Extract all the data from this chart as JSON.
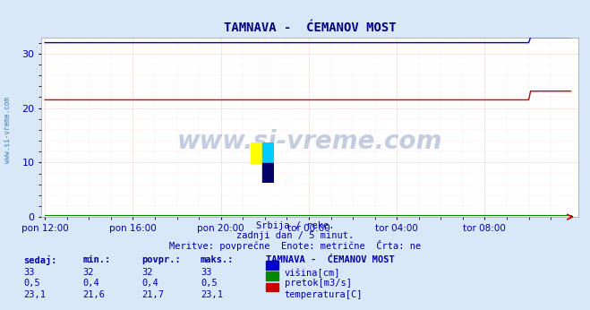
{
  "title": "TAMNAVA -  ĆEMANOV MOST",
  "subtitle1": "Srbija / reke.",
  "subtitle2": "zadnji dan / 5 minut.",
  "subtitle3": "Meritve: povprečne  Enote: metrične  Črta: ne",
  "bg_color": "#d8e8f8",
  "plot_bg_color": "#ffffff",
  "grid_color_major": "#ffcccc",
  "grid_color_minor": "#ffeeee",
  "title_color": "#000080",
  "text_color": "#0000aa",
  "sidebar_color": "#0055aa",
  "xticklabels": [
    "pon 12:00",
    "pon 16:00",
    "pon 20:00",
    "tor 00:00",
    "tor 04:00",
    "tor 08:00"
  ],
  "xtick_positions": [
    0,
    48,
    96,
    144,
    192,
    240
  ],
  "ylim": [
    0,
    33
  ],
  "yticks": [
    0,
    10,
    20,
    30
  ],
  "n_points": 288,
  "visina_base": 32.0,
  "visina_jump_idx": 265,
  "visina_jump_val": 33.0,
  "temp_base": 21.5,
  "temp_jump_idx": 265,
  "temp_jump_val": 23.1,
  "pretok_base": 0.4,
  "line_color_visina": "#0000cc",
  "line_color_pretok": "#008800",
  "line_color_temp": "#cc0000",
  "watermark_text": "www.si-vreme.com",
  "watermark_color": "#1a3a88",
  "watermark_alpha": 0.25,
  "sidebar_text": "www.si-vreme.com",
  "table_headers": [
    "sedaj:",
    "min.:",
    "povpr.:",
    "maks.:"
  ],
  "station_name": "TAMNAVA -  ĆEMANOV MOST",
  "table_rows": [
    [
      "33",
      "32",
      "32",
      "33"
    ],
    [
      "0,5",
      "0,4",
      "0,4",
      "0,5"
    ],
    [
      "23,1",
      "21,6",
      "21,7",
      "23,1"
    ]
  ],
  "legend_labels": [
    "višina[cm]",
    "pretok[m3/s]",
    "temperatura[C]"
  ],
  "legend_colors": [
    "#0000cc",
    "#008800",
    "#cc0000"
  ],
  "arrow_color": "#cc0000"
}
